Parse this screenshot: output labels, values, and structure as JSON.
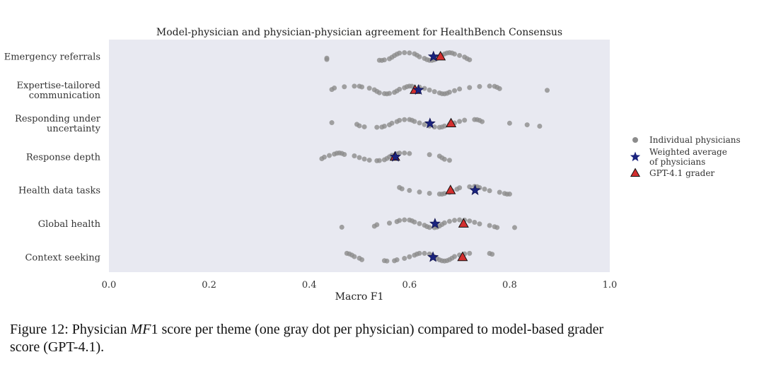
{
  "chart_data": {
    "type": "scatter",
    "title": "Model-physician and physician-physician agreement for HealthBench Consensus",
    "xlabel": "Macro F1",
    "ylabel": "",
    "xlim": [
      0.0,
      1.0
    ],
    "xticks": [
      "0.0",
      "0.2",
      "0.4",
      "0.6",
      "0.8",
      "1.0"
    ],
    "grid": false,
    "legend_position": "right",
    "categories": [
      "Emergency referrals",
      "Expertise-tailored communication",
      "Responding under uncertainty",
      "Response depth",
      "Health data tasks",
      "Global health",
      "Context seeking"
    ],
    "category_lines": [
      [
        "Emergency referrals"
      ],
      [
        "Expertise-tailored",
        "communication"
      ],
      [
        "Responding under",
        "uncertainty"
      ],
      [
        "Response depth"
      ],
      [
        "Health data tasks"
      ],
      [
        "Global health"
      ],
      [
        "Context seeking"
      ]
    ],
    "series": [
      {
        "name": "Individual physicians",
        "marker": "circle",
        "color": "#8c8c8c",
        "points": [
          [
            0.435,
            0.435,
            0.54,
            0.545,
            0.55,
            0.56,
            0.565,
            0.57,
            0.575,
            0.58,
            0.59,
            0.6,
            0.61,
            0.615,
            0.62,
            0.63,
            0.635,
            0.64,
            0.645,
            0.65,
            0.655,
            0.66,
            0.665,
            0.67,
            0.675,
            0.68,
            0.685,
            0.69,
            0.7,
            0.71,
            0.715,
            0.72
          ],
          [
            0.445,
            0.45,
            0.47,
            0.49,
            0.5,
            0.505,
            0.52,
            0.53,
            0.535,
            0.54,
            0.55,
            0.555,
            0.56,
            0.57,
            0.575,
            0.58,
            0.59,
            0.595,
            0.6,
            0.605,
            0.62,
            0.63,
            0.64,
            0.65,
            0.66,
            0.665,
            0.67,
            0.675,
            0.68,
            0.69,
            0.7,
            0.72,
            0.74,
            0.76,
            0.77,
            0.775,
            0.78,
            0.875
          ],
          [
            0.445,
            0.495,
            0.5,
            0.51,
            0.535,
            0.545,
            0.55,
            0.56,
            0.565,
            0.575,
            0.58,
            0.59,
            0.6,
            0.605,
            0.61,
            0.62,
            0.63,
            0.64,
            0.65,
            0.66,
            0.665,
            0.67,
            0.68,
            0.69,
            0.7,
            0.71,
            0.73,
            0.735,
            0.74,
            0.745,
            0.8,
            0.835,
            0.86
          ],
          [
            0.425,
            0.43,
            0.44,
            0.45,
            0.455,
            0.46,
            0.465,
            0.47,
            0.49,
            0.5,
            0.51,
            0.52,
            0.535,
            0.54,
            0.55,
            0.555,
            0.56,
            0.565,
            0.575,
            0.58,
            0.59,
            0.6,
            0.64,
            0.66,
            0.665,
            0.67,
            0.68
          ],
          [
            0.58,
            0.585,
            0.6,
            0.62,
            0.64,
            0.66,
            0.665,
            0.67,
            0.68,
            0.685,
            0.695,
            0.7,
            0.72,
            0.73,
            0.735,
            0.74,
            0.75,
            0.76,
            0.78,
            0.79,
            0.795,
            0.8
          ],
          [
            0.465,
            0.53,
            0.535,
            0.56,
            0.575,
            0.58,
            0.59,
            0.6,
            0.605,
            0.61,
            0.62,
            0.63,
            0.635,
            0.64,
            0.65,
            0.655,
            0.66,
            0.665,
            0.67,
            0.68,
            0.69,
            0.7,
            0.71,
            0.72,
            0.73,
            0.74,
            0.76,
            0.77,
            0.775,
            0.81
          ],
          [
            0.475,
            0.48,
            0.485,
            0.49,
            0.5,
            0.505,
            0.55,
            0.555,
            0.57,
            0.575,
            0.59,
            0.6,
            0.61,
            0.615,
            0.62,
            0.63,
            0.64,
            0.645,
            0.65,
            0.655,
            0.66,
            0.665,
            0.67,
            0.675,
            0.68,
            0.685,
            0.69,
            0.7,
            0.71,
            0.72,
            0.76,
            0.765
          ]
        ]
      },
      {
        "name": "Weighted average of physicians",
        "legend_lines": [
          "Weighted average",
          "of physicians"
        ],
        "marker": "star",
        "color": "#1a237e",
        "values": [
          0.648,
          0.618,
          0.641,
          0.572,
          0.731,
          0.651,
          0.647
        ]
      },
      {
        "name": "GPT-4.1 grader",
        "marker": "triangle",
        "color": "#d32f2f",
        "values": [
          0.662,
          0.611,
          0.683,
          0.571,
          0.682,
          0.708,
          0.706
        ]
      }
    ]
  },
  "caption": {
    "prefix": "Figure 12: Physician ",
    "math": "MF",
    "math_suffix": "1",
    "line1_rest": " score per theme (one gray dot per physician) compared to model-based grader",
    "line2": "score (GPT-4.1)."
  },
  "colors": {
    "plot_background": "#e8e9f1",
    "dot": "#8c8c8c",
    "star": "#1a237e",
    "triangle": "#d32f2f"
  }
}
